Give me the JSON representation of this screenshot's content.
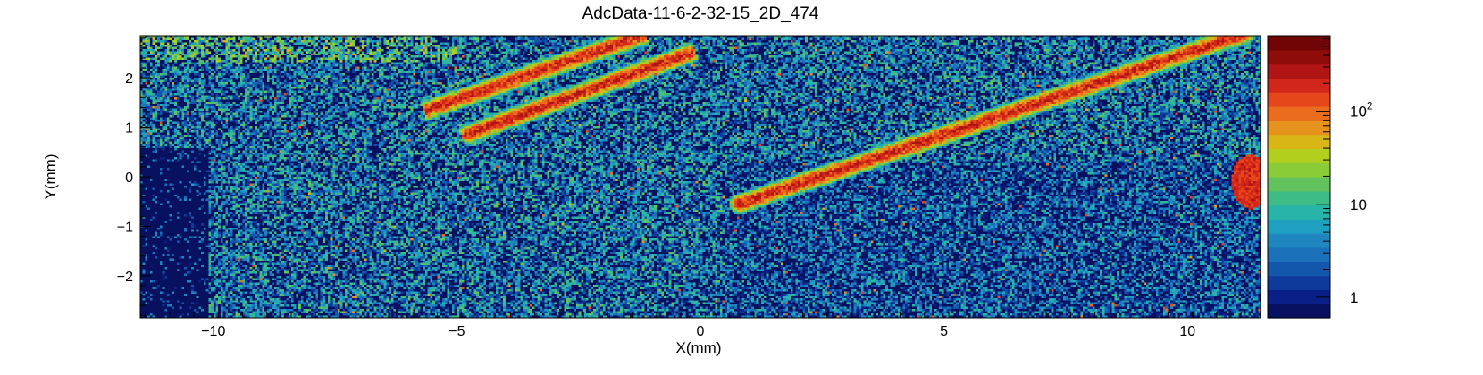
{
  "chart_data": {
    "type": "heatmap",
    "title": "AdcData-11-6-2-32-15_2D_474",
    "xlabel": "X(mm)",
    "ylabel": "Y(mm)",
    "xlim": [
      -11.5,
      11.5
    ],
    "ylim": [
      -2.85,
      2.85
    ],
    "x_ticks": [
      {
        "value": -10,
        "label": "−10"
      },
      {
        "value": -5,
        "label": "−5"
      },
      {
        "value": 0,
        "label": "0"
      },
      {
        "value": 5,
        "label": "5"
      },
      {
        "value": 10,
        "label": "10"
      }
    ],
    "y_ticks": [
      {
        "value": -2,
        "label": "−2"
      },
      {
        "value": -1,
        "label": "−1"
      },
      {
        "value": 0,
        "label": "0"
      },
      {
        "value": 1,
        "label": "1"
      },
      {
        "value": 2,
        "label": "2"
      }
    ],
    "z_scale": "log",
    "zlim": [
      0.6,
      650
    ],
    "colorbar_ticks": [
      {
        "value": 1,
        "label": "1"
      },
      {
        "value": 10,
        "label": "10"
      },
      {
        "value": 100,
        "label": "10",
        "sup": "2"
      }
    ],
    "colormap": [
      "#08115f",
      "#0a1f87",
      "#0d3a9b",
      "#1257ab",
      "#1a70b9",
      "#1f86c0",
      "#20a0c0",
      "#28b4a8",
      "#3ebc86",
      "#62c35c",
      "#8acb38",
      "#b2cf1e",
      "#d7b615",
      "#e6931d",
      "#ea6c1c",
      "#e5461a",
      "#d2261a",
      "#b01414",
      "#8e0c0a",
      "#700505"
    ],
    "features": {
      "background_mean": 3.0,
      "band_peak": 260,
      "tracks": [
        {
          "x0": -5.6,
          "y0": 1.35,
          "x1": -1.2,
          "y1": 2.85
        },
        {
          "x0": -4.8,
          "y0": 0.85,
          "x1": -0.2,
          "y1": 2.5
        },
        {
          "x0": 0.8,
          "y0": -0.55,
          "x1": 11.2,
          "y1": 2.9
        }
      ],
      "hot_spot": {
        "x": 11.3,
        "y": -0.1
      }
    }
  }
}
